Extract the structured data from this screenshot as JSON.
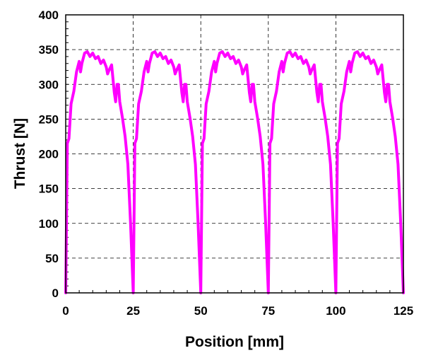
{
  "chart_data": {
    "type": "line",
    "title": "",
    "xlabel": "Position [mm]",
    "ylabel": "Thrust [N]",
    "xlim": [
      0,
      125
    ],
    "ylim": [
      0,
      400
    ],
    "xticks": [
      0,
      25,
      50,
      75,
      100,
      125
    ],
    "yticks": [
      0,
      50,
      100,
      150,
      200,
      250,
      300,
      350,
      400
    ],
    "x_tick_labels": [
      "0",
      "25",
      "50",
      "75",
      "100",
      "125"
    ],
    "y_tick_labels": [
      "0",
      "50",
      "100",
      "150",
      "200",
      "250",
      "300",
      "350",
      "400"
    ],
    "grid": "dashed",
    "color": "#ff00ff",
    "series": [
      {
        "period_template": {
          "x": [
            0,
            0.6,
            1.2,
            2,
            3,
            4,
            5,
            5.5,
            6,
            7,
            8,
            9,
            10,
            11,
            12,
            13,
            14,
            15,
            15.5,
            16,
            17,
            18,
            18.5,
            19,
            19.5,
            20,
            21,
            22,
            23,
            24,
            25
          ],
          "y": [
            0,
            215,
            222,
            272,
            290,
            318,
            333,
            318,
            330,
            345,
            347,
            340,
            345,
            337,
            340,
            330,
            335,
            325,
            315,
            320,
            328,
            288,
            275,
            300,
            300,
            275,
            252,
            225,
            185,
            100,
            0
          ]
        },
        "periods": 5,
        "period_length": 25
      }
    ]
  }
}
